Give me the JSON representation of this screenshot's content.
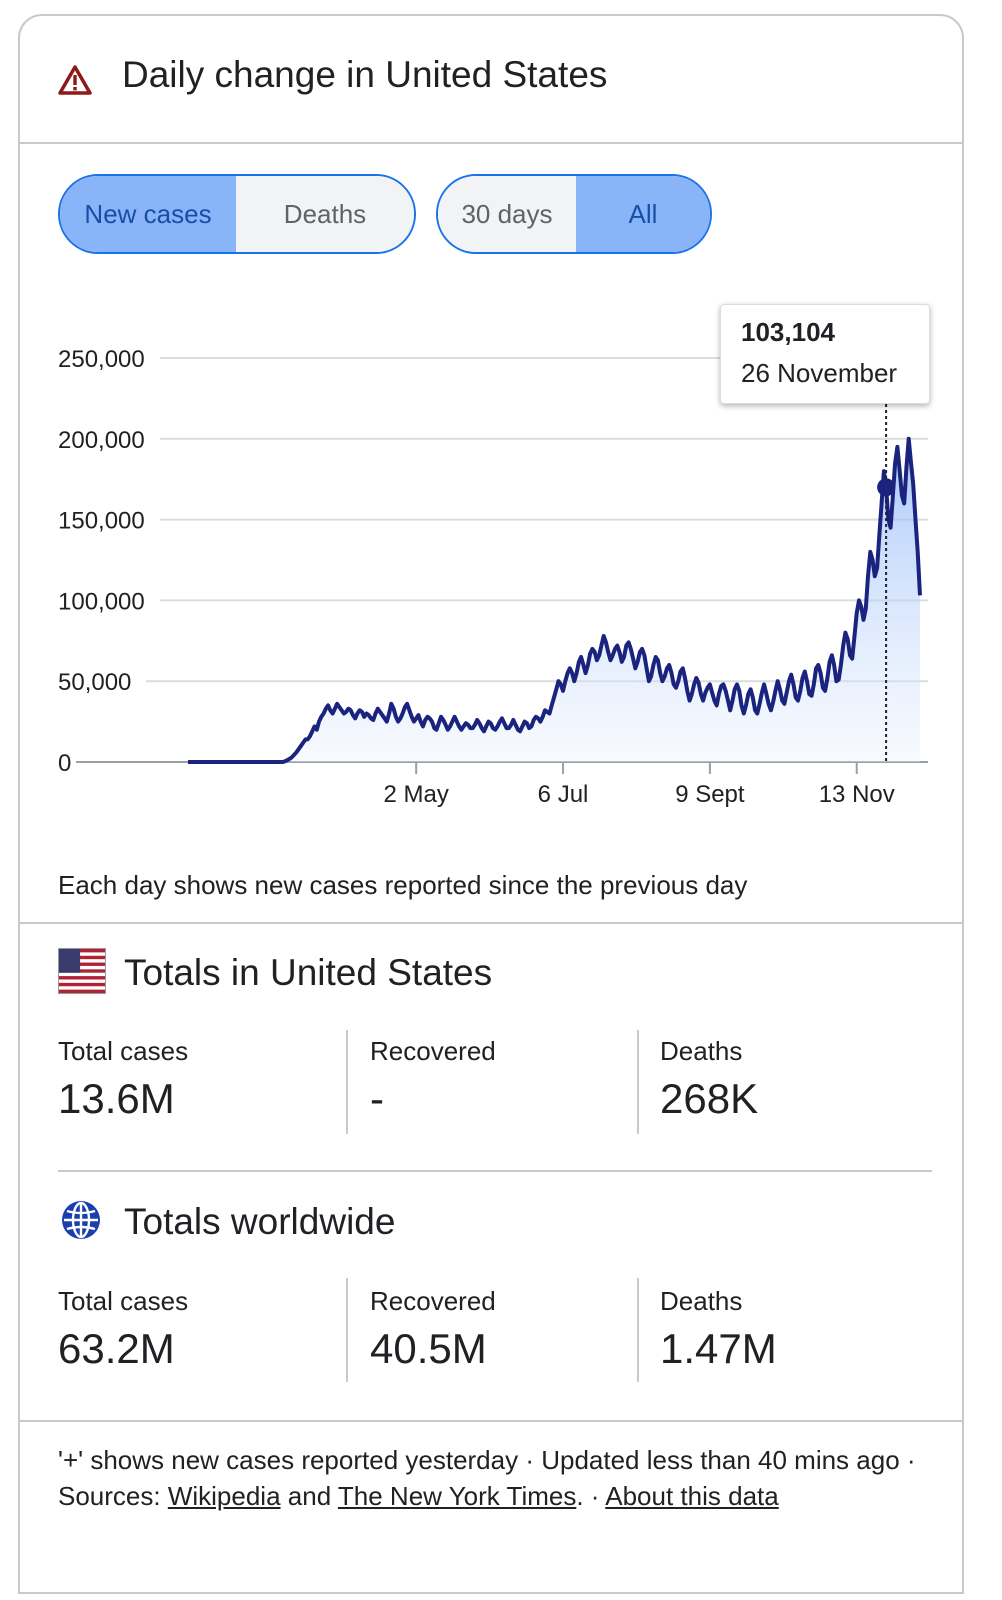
{
  "header": {
    "title": "Daily change in United States",
    "warning_icon": "warning-triangle-icon"
  },
  "toggles": {
    "metric": {
      "new_cases": "New cases",
      "deaths": "Deaths",
      "selected": "New cases"
    },
    "range": {
      "thirty_days": "30 days",
      "all": "All",
      "selected": "All"
    }
  },
  "tooltip": {
    "value": "103,104",
    "date": "26 November"
  },
  "chart_data": {
    "type": "line",
    "title": "Daily change in United States",
    "series": [
      {
        "name": "New cases",
        "color": "#1a237e",
        "values": [
          0,
          0,
          0,
          0,
          0,
          0,
          0,
          0,
          0,
          0,
          0,
          0,
          0,
          0,
          0,
          0,
          0,
          0,
          0,
          0,
          0,
          0,
          0,
          0,
          0,
          0,
          0,
          0,
          0,
          0,
          0,
          0,
          0,
          0,
          0,
          0,
          0,
          0,
          0,
          0,
          0,
          0,
          0,
          500,
          1200,
          2000,
          3000,
          4500,
          6000,
          8000,
          10000,
          12000,
          14000,
          14000,
          16000,
          19000,
          22000,
          20000,
          25000,
          28000,
          30000,
          33000,
          35000,
          32000,
          30000,
          33000,
          36000,
          34000,
          32000,
          30000,
          31000,
          33000,
          32000,
          29000,
          27000,
          30000,
          32000,
          31000,
          28000,
          30000,
          29000,
          27000,
          26000,
          30000,
          33000,
          31000,
          29000,
          27000,
          25000,
          30000,
          36000,
          33000,
          28000,
          25000,
          27000,
          30000,
          34000,
          36000,
          32000,
          28000,
          25000,
          27000,
          29000,
          25000,
          22000,
          26000,
          28000,
          27000,
          25000,
          21000,
          20000,
          24000,
          28000,
          26000,
          23000,
          20000,
          22000,
          25000,
          28000,
          25000,
          22000,
          20000,
          22000,
          24000,
          23000,
          21000,
          21000,
          23000,
          26000,
          24000,
          21000,
          19000,
          22000,
          25000,
          24000,
          21000,
          20000,
          22000,
          25000,
          27000,
          24000,
          21000,
          21000,
          23000,
          26000,
          23000,
          20000,
          19000,
          22000,
          25000,
          24000,
          21000,
          22000,
          26000,
          28000,
          27000,
          25000,
          28000,
          32000,
          31000,
          30000,
          35000,
          40000,
          45000,
          50000,
          48000,
          44000,
          50000,
          55000,
          58000,
          55000,
          50000,
          55000,
          62000,
          65000,
          60000,
          55000,
          60000,
          67000,
          70000,
          68000,
          63000,
          66000,
          72000,
          78000,
          74000,
          68000,
          63000,
          66000,
          70000,
          72000,
          68000,
          62000,
          65000,
          72000,
          74000,
          70000,
          64000,
          58000,
          62000,
          68000,
          70000,
          66000,
          58000,
          50000,
          53000,
          60000,
          65000,
          63000,
          55000,
          50000,
          53000,
          58000,
          60000,
          55000,
          48000,
          46000,
          50000,
          56000,
          58000,
          52000,
          44000,
          38000,
          42000,
          48000,
          52000,
          49000,
          42000,
          38000,
          43000,
          46000,
          48000,
          43000,
          38000,
          35000,
          42000,
          47000,
          48000,
          44000,
          38000,
          32000,
          38000,
          45000,
          48000,
          44000,
          35000,
          30000,
          35000,
          42000,
          45000,
          40000,
          32000,
          30000,
          36000,
          43000,
          48000,
          42000,
          36000,
          32000,
          37000,
          44000,
          50000,
          45000,
          38000,
          36000,
          43000,
          50000,
          54000,
          48000,
          40000,
          38000,
          44000,
          52000,
          56000,
          50000,
          42000,
          41000,
          48000,
          58000,
          60000,
          55000,
          46000,
          44000,
          52000,
          62000,
          66000,
          60000,
          50000,
          51000,
          60000,
          72000,
          80000,
          76000,
          66000,
          64000,
          78000,
          92000,
          100000,
          96000,
          88000,
          95000,
          115000,
          130000,
          125000,
          115000,
          120000,
          140000,
          160000,
          180000,
          170000,
          150000,
          145000,
          165000,
          185000,
          195000,
          180000,
          165000,
          160000,
          182000,
          200000,
          185000,
          172000,
          150000,
          130000,
          103104
        ]
      }
    ],
    "x_tick_labels": [
      "2 May",
      "6 Jul",
      "9 Sept",
      "13 Nov"
    ],
    "x_tick_day_index": [
      101,
      166,
      231,
      296
    ],
    "y_tick_labels": [
      "0",
      "50,000",
      "100,000",
      "150,000",
      "200,000",
      "250,000"
    ],
    "y_ticks": [
      0,
      50000,
      100000,
      150000,
      200000,
      250000
    ],
    "ylim": [
      0,
      250000
    ],
    "highlight_index": 309
  },
  "chart_note": "Each day shows new cases reported since the previous day",
  "us_totals": {
    "title": "Totals in United States",
    "icon": "us-flag-icon",
    "stats": [
      {
        "label": "Total cases",
        "value": "13.6M"
      },
      {
        "label": "Recovered",
        "value": "-"
      },
      {
        "label": "Deaths",
        "value": "268K"
      }
    ]
  },
  "world_totals": {
    "title": "Totals worldwide",
    "icon": "globe-icon",
    "stats": [
      {
        "label": "Total cases",
        "value": "63.2M"
      },
      {
        "label": "Recovered",
        "value": "40.5M"
      },
      {
        "label": "Deaths",
        "value": "1.47M"
      }
    ]
  },
  "footer": {
    "text1": "'+' shows new cases reported yesterday · Updated less than 40 mins ago  ·  Sources: ",
    "source1": "Wikipedia",
    "and": " and ",
    "source2": "The New York Times",
    "dot": ".  · ",
    "about": "About this data"
  },
  "colors": {
    "accent": "#1a73e8",
    "toggle_active": "#8ab4f8",
    "line": "#1a237e",
    "warning": "#8b1a1a"
  }
}
